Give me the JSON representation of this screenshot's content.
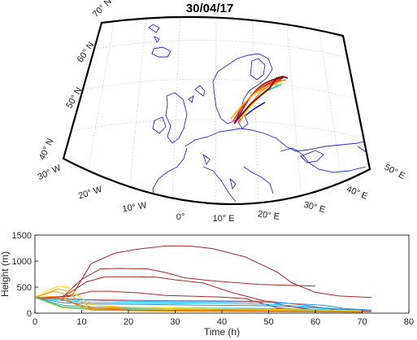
{
  "map": {
    "title": "30/04/17",
    "lat_labels": [
      "70° N",
      "60° N",
      "50° N",
      "40° N"
    ],
    "lon_labels": [
      "30° W",
      "20° W",
      "10° W",
      "0°",
      "10° E",
      "20° E",
      "30° E",
      "40° E",
      "50° E"
    ],
    "coastline_color": "#1f2bd6",
    "trajectory_colors": [
      "#8b0000",
      "#d7191c",
      "#ff7f00",
      "#ffd700",
      "#7fff00",
      "#00bfff",
      "#0000cd"
    ]
  },
  "chart_data": {
    "type": "line",
    "title": "",
    "xlabel": "Time (h)",
    "ylabel": "Height (m)",
    "xlim": [
      0,
      80
    ],
    "ylim": [
      0,
      1500
    ],
    "xticks": [
      0,
      10,
      20,
      30,
      40,
      50,
      60,
      70,
      80
    ],
    "yticks": [
      0,
      500,
      1000,
      1500
    ],
    "grid": false,
    "series": [
      {
        "color": "#a52a2a",
        "points": [
          [
            0,
            300
          ],
          [
            5,
            310
          ],
          [
            8,
            350
          ],
          [
            12,
            950
          ],
          [
            17,
            1150
          ],
          [
            22,
            1230
          ],
          [
            28,
            1290
          ],
          [
            33,
            1290
          ],
          [
            38,
            1240
          ],
          [
            45,
            1080
          ],
          [
            52,
            780
          ],
          [
            55,
            580
          ],
          [
            60,
            400
          ],
          [
            65,
            330
          ],
          [
            72,
            300
          ]
        ]
      },
      {
        "color": "#a52a2a",
        "points": [
          [
            0,
            300
          ],
          [
            6,
            320
          ],
          [
            10,
            650
          ],
          [
            14,
            850
          ],
          [
            18,
            860
          ],
          [
            24,
            850
          ],
          [
            28,
            780
          ],
          [
            32,
            680
          ],
          [
            38,
            620
          ],
          [
            48,
            550
          ],
          [
            60,
            520
          ]
        ]
      },
      {
        "color": "#a52a2a",
        "points": [
          [
            0,
            300
          ],
          [
            6,
            310
          ],
          [
            11,
            600
          ],
          [
            15,
            700
          ],
          [
            20,
            700
          ],
          [
            26,
            690
          ],
          [
            30,
            640
          ],
          [
            36,
            580
          ],
          [
            42,
            400
          ],
          [
            48,
            260
          ],
          [
            55,
            120
          ],
          [
            60,
            60
          ]
        ]
      },
      {
        "color": "#a52a2a",
        "points": [
          [
            0,
            300
          ],
          [
            5,
            300
          ],
          [
            8,
            330
          ],
          [
            12,
            420
          ],
          [
            16,
            420
          ],
          [
            22,
            390
          ],
          [
            28,
            340
          ],
          [
            32,
            330
          ],
          [
            40,
            310
          ],
          [
            45,
            280
          ],
          [
            52,
            100
          ],
          [
            60,
            40
          ],
          [
            72,
            30
          ]
        ]
      },
      {
        "color": "#cd5c5c",
        "points": [
          [
            0,
            300
          ],
          [
            6,
            280
          ],
          [
            12,
            260
          ],
          [
            20,
            250
          ],
          [
            30,
            240
          ],
          [
            40,
            235
          ],
          [
            50,
            230
          ],
          [
            58,
            150
          ],
          [
            65,
            60
          ],
          [
            72,
            40
          ]
        ]
      },
      {
        "color": "#1e90ff",
        "points": [
          [
            0,
            300
          ],
          [
            6,
            270
          ],
          [
            12,
            250
          ],
          [
            20,
            230
          ],
          [
            30,
            220
          ],
          [
            40,
            220
          ],
          [
            50,
            210
          ],
          [
            56,
            180
          ],
          [
            62,
            150
          ],
          [
            66,
            90
          ],
          [
            72,
            60
          ]
        ]
      },
      {
        "color": "#00bfff",
        "points": [
          [
            0,
            300
          ],
          [
            6,
            240
          ],
          [
            12,
            210
          ],
          [
            20,
            200
          ],
          [
            30,
            195
          ],
          [
            40,
            190
          ],
          [
            50,
            170
          ],
          [
            58,
            130
          ],
          [
            65,
            80
          ],
          [
            72,
            50
          ]
        ]
      },
      {
        "color": "#4682b4",
        "points": [
          [
            0,
            300
          ],
          [
            6,
            200
          ],
          [
            12,
            180
          ],
          [
            20,
            170
          ],
          [
            30,
            160
          ],
          [
            40,
            150
          ],
          [
            50,
            140
          ],
          [
            60,
            100
          ],
          [
            70,
            60
          ]
        ]
      },
      {
        "color": "#20b2aa",
        "points": [
          [
            0,
            300
          ],
          [
            6,
            150
          ],
          [
            12,
            120
          ],
          [
            20,
            110
          ],
          [
            30,
            100
          ],
          [
            40,
            95
          ],
          [
            50,
            90
          ],
          [
            60,
            70
          ],
          [
            70,
            50
          ]
        ]
      },
      {
        "color": "#3cb371",
        "points": [
          [
            0,
            300
          ],
          [
            6,
            120
          ],
          [
            12,
            90
          ],
          [
            20,
            80
          ],
          [
            30,
            75
          ],
          [
            40,
            70
          ],
          [
            50,
            65
          ],
          [
            60,
            50
          ],
          [
            70,
            40
          ]
        ]
      },
      {
        "color": "#9acd32",
        "points": [
          [
            0,
            300
          ],
          [
            6,
            100
          ],
          [
            12,
            70
          ],
          [
            20,
            60
          ],
          [
            30,
            55
          ],
          [
            40,
            50
          ],
          [
            50,
            45
          ],
          [
            60,
            40
          ],
          [
            70,
            30
          ]
        ]
      },
      {
        "color": "#ffd700",
        "points": [
          [
            0,
            300
          ],
          [
            3,
            450
          ],
          [
            5,
            520
          ],
          [
            7,
            500
          ],
          [
            9,
            350
          ],
          [
            12,
            160
          ],
          [
            18,
            120
          ],
          [
            30,
            100
          ],
          [
            45,
            80
          ],
          [
            60,
            60
          ],
          [
            70,
            50
          ]
        ]
      },
      {
        "color": "#ffa500",
        "points": [
          [
            0,
            300
          ],
          [
            3,
            400
          ],
          [
            5,
            470
          ],
          [
            7,
            420
          ],
          [
            9,
            250
          ],
          [
            12,
            120
          ],
          [
            20,
            90
          ],
          [
            35,
            70
          ],
          [
            50,
            60
          ],
          [
            70,
            40
          ]
        ]
      },
      {
        "color": "#daa520",
        "points": [
          [
            0,
            300
          ],
          [
            2,
            360
          ],
          [
            4,
            420
          ],
          [
            6,
            380
          ],
          [
            8,
            200
          ],
          [
            11,
            80
          ],
          [
            20,
            60
          ],
          [
            35,
            40
          ],
          [
            55,
            30
          ],
          [
            70,
            25
          ]
        ]
      },
      {
        "color": "#ff8c00",
        "points": [
          [
            0,
            300
          ],
          [
            4,
            320
          ],
          [
            6,
            300
          ],
          [
            9,
            150
          ],
          [
            12,
            60
          ],
          [
            25,
            40
          ],
          [
            45,
            30
          ],
          [
            70,
            20
          ]
        ]
      },
      {
        "color": "#d2691e",
        "points": [
          [
            0,
            300
          ],
          [
            5,
            280
          ],
          [
            8,
            200
          ],
          [
            12,
            100
          ],
          [
            20,
            60
          ],
          [
            40,
            50
          ],
          [
            60,
            30
          ],
          [
            70,
            20
          ]
        ]
      }
    ]
  }
}
